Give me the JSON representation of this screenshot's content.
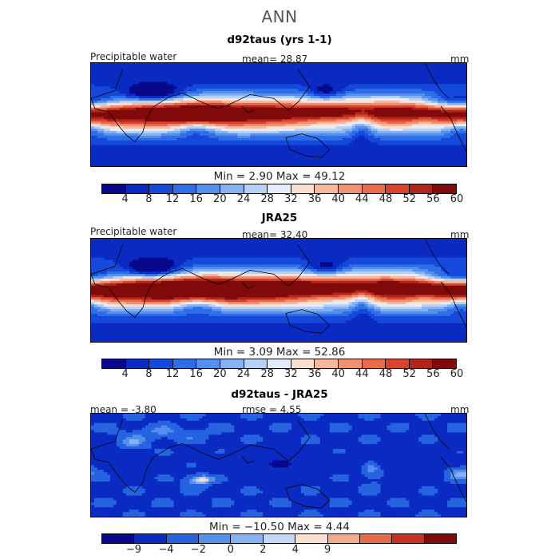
{
  "figure": {
    "title": "ANN"
  },
  "panels": [
    {
      "title": "d92taus (yrs 1-1)",
      "left_label": "Precipitable water",
      "center_label": "mean=  28.87",
      "right_label": "mm",
      "min_max": "Min =    2.90  Max =   49.12",
      "colorbar_ticks": [
        "4",
        "8",
        "12",
        "16",
        "20",
        "24",
        "28",
        "32",
        "36",
        "40",
        "44",
        "48",
        "52",
        "56",
        "60"
      ],
      "field": "model",
      "mean_value": 28.87,
      "min_value": 2.9,
      "max_value": 49.12
    },
    {
      "title": "JRA25",
      "left_label": "Precipitable water",
      "center_label": "mean=  32.40",
      "right_label": "mm",
      "min_max": "Min =    3.09  Max =   52.86",
      "colorbar_ticks": [
        "4",
        "8",
        "12",
        "16",
        "20",
        "24",
        "28",
        "32",
        "36",
        "40",
        "44",
        "48",
        "52",
        "56",
        "60"
      ],
      "field": "obs",
      "mean_value": 32.4,
      "min_value": 3.09,
      "max_value": 52.86
    },
    {
      "title": "d92taus - JRA25",
      "left_label": "mean =  -3.80",
      "center_label": "rmse =   4.55",
      "right_label": "mm",
      "min_max": "Min = −10.50  Max =    4.44",
      "colorbar_ticks": [
        "−9",
        "−4",
        "−2",
        "0",
        "2",
        "4",
        "9"
      ],
      "field": "diff",
      "mean_value": -3.8,
      "rmse_value": 4.55,
      "min_value": -10.5,
      "max_value": 4.44
    }
  ],
  "colors": {
    "abs_scale": [
      "#08088a",
      "#0a2bc2",
      "#1449dc",
      "#2e6fe8",
      "#5390ee",
      "#86b2f4",
      "#b6d1f8",
      "#e2ecfb",
      "#fbdfcf",
      "#f7b89b",
      "#f19173",
      "#ea6a4b",
      "#d9432e",
      "#b3241a",
      "#800a0a"
    ],
    "diff_scale": [
      "#08088a",
      "#0a2bc2",
      "#2563e0",
      "#5390ee",
      "#86b2f4",
      "#c3d8f9",
      "#fbdfcf",
      "#f4a98a",
      "#e56a4a",
      "#c63120",
      "#800a0a"
    ]
  }
}
